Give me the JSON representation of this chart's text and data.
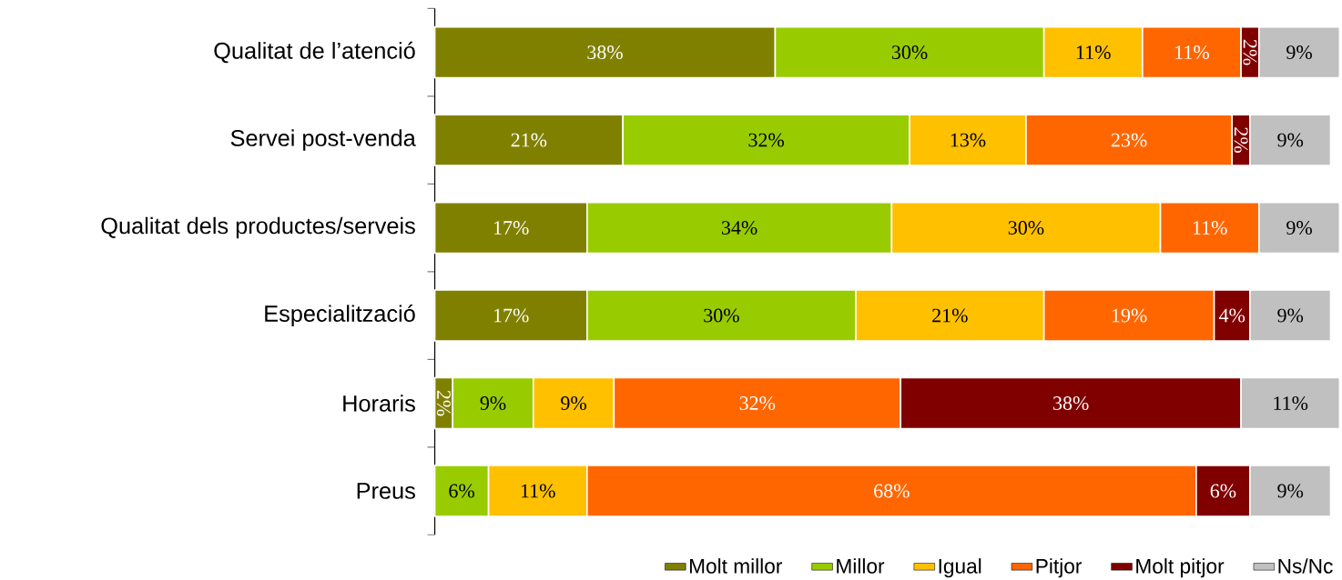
{
  "chart_data": {
    "type": "bar",
    "orientation": "horizontal",
    "stacked": true,
    "legend": "bottom",
    "categories": [
      "Qualitat de l’atenció",
      "Servei post-venda",
      "Qualitat dels productes/serveis",
      "Especialització",
      "Horaris",
      "Preus"
    ],
    "series": [
      {
        "name": "Molt millor",
        "color": "#808000",
        "values": [
          38,
          21,
          17,
          17,
          2,
          null
        ],
        "value_labels": [
          "38%",
          "21%",
          "17%",
          "17%",
          "2%",
          null
        ]
      },
      {
        "name": "Millor",
        "color": "#99cc00",
        "values": [
          30,
          32,
          34,
          30,
          9,
          6
        ],
        "value_labels": [
          "30%",
          "32%",
          "34%",
          "30%",
          "9%",
          "6%"
        ]
      },
      {
        "name": "Igual",
        "color": "#ffc000",
        "values": [
          11,
          13,
          30,
          21,
          9,
          11
        ],
        "value_labels": [
          "11%",
          "13%",
          "30%",
          "21%",
          "9%",
          "11%"
        ]
      },
      {
        "name": "Pitjor",
        "color": "#ff6600",
        "values": [
          11,
          23,
          11,
          19,
          32,
          68
        ],
        "value_labels": [
          "11%",
          "23%",
          "11%",
          "19%",
          "32%",
          "68%"
        ]
      },
      {
        "name": "Molt pitjor",
        "color": "#800000",
        "values": [
          2,
          2,
          null,
          4,
          38,
          6
        ],
        "value_labels": [
          "2%",
          "2%",
          null,
          "4%",
          "38%",
          "6%"
        ]
      },
      {
        "name": "Ns/Nc",
        "color": "#c0c0c0",
        "values": [
          9,
          9,
          9,
          9,
          11,
          9
        ],
        "value_labels": [
          "9%",
          "9%",
          "9%",
          "9%",
          "11%",
          "9%"
        ]
      }
    ]
  }
}
